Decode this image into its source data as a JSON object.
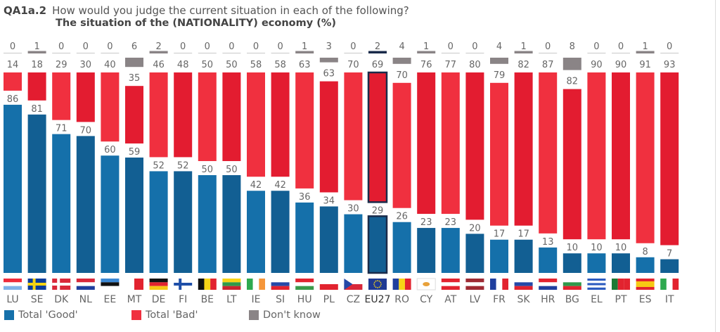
{
  "header": {
    "question_id": "QA1a.2",
    "question": "How would you judge the current situation in each of the following?",
    "subtitle": "The situation of the (NATIONALITY) economy  (%)"
  },
  "colors": {
    "good": "#1570aa",
    "good_alt": "#125f93",
    "bad": "#f0303f",
    "bad_alt": "#e31c30",
    "dont_know": "#8a8486",
    "eu_outline": "#1a2b4a",
    "text": "#666666"
  },
  "legend": [
    {
      "key": "good",
      "label": "Total 'Good'"
    },
    {
      "key": "bad",
      "label": "Total 'Bad'"
    },
    {
      "key": "dont_know",
      "label": "Don't know"
    }
  ],
  "chart_data": {
    "type": "bar",
    "stacked": true,
    "title": "The situation of the (NATIONALITY) economy (%)",
    "xlabel": "",
    "ylabel": "%",
    "ylim": [
      0,
      100
    ],
    "grid": false,
    "legend_position": "bottom",
    "categories": [
      "LU",
      "SE",
      "DK",
      "NL",
      "EE",
      "MT",
      "DE",
      "FI",
      "BE",
      "LT",
      "IE",
      "SI",
      "HU",
      "PL",
      "CZ",
      "EU27",
      "RO",
      "CY",
      "AT",
      "LV",
      "FR",
      "SK",
      "HR",
      "BG",
      "EL",
      "PT",
      "ES",
      "IT"
    ],
    "highlight": "EU27",
    "series": [
      {
        "name": "Total 'Good'",
        "values": [
          86,
          81,
          71,
          70,
          60,
          59,
          52,
          52,
          50,
          50,
          42,
          42,
          36,
          34,
          30,
          29,
          26,
          23,
          23,
          20,
          17,
          17,
          13,
          10,
          10,
          10,
          8,
          7
        ]
      },
      {
        "name": "Total 'Bad'",
        "values": [
          14,
          18,
          29,
          30,
          40,
          35,
          46,
          48,
          50,
          50,
          58,
          58,
          63,
          63,
          70,
          69,
          70,
          76,
          77,
          80,
          79,
          82,
          87,
          82,
          90,
          90,
          91,
          93
        ]
      },
      {
        "name": "Don't know",
        "values": [
          0,
          1,
          0,
          0,
          0,
          6,
          2,
          0,
          0,
          0,
          0,
          0,
          1,
          3,
          0,
          2,
          4,
          1,
          0,
          0,
          4,
          1,
          0,
          8,
          0,
          0,
          1,
          0
        ]
      }
    ]
  },
  "flags": {
    "LU": {
      "stripes": "h",
      "colors": [
        "#ef2b3b",
        "#ffffff",
        "#7fb2e8"
      ]
    },
    "SE": {
      "cross": true,
      "bg": "#0a3d9c",
      "fg": "#f5d312"
    },
    "DK": {
      "cross": true,
      "bg": "#d9283a",
      "fg": "#ffffff"
    },
    "NL": {
      "stripes": "h",
      "colors": [
        "#d9283a",
        "#ffffff",
        "#1f3f9e"
      ]
    },
    "EE": {
      "stripes": "h",
      "colors": [
        "#3b88d4",
        "#111111",
        "#ffffff"
      ]
    },
    "MT": {
      "stripes": "v",
      "colors": [
        "#ffffff",
        "#e2232f"
      ]
    },
    "DE": {
      "stripes": "h",
      "colors": [
        "#111111",
        "#e2232f",
        "#f7c814"
      ]
    },
    "FI": {
      "cross": true,
      "bg": "#ffffff",
      "fg": "#1e4fa8"
    },
    "BE": {
      "stripes": "v",
      "colors": [
        "#111111",
        "#f7d416",
        "#e2232f"
      ]
    },
    "LT": {
      "stripes": "h",
      "colors": [
        "#f7d416",
        "#2e9a4a",
        "#c9232f"
      ]
    },
    "IE": {
      "stripes": "v",
      "colors": [
        "#2ea94f",
        "#ffffff",
        "#f5963a"
      ]
    },
    "SI": {
      "stripes": "h",
      "colors": [
        "#ffffff",
        "#2448a8",
        "#e2232f"
      ]
    },
    "HU": {
      "stripes": "h",
      "colors": [
        "#e2232f",
        "#ffffff",
        "#3b9a4a"
      ]
    },
    "PL": {
      "stripes": "h",
      "colors": [
        "#ffffff",
        "#e2232f"
      ]
    },
    "CZ": {
      "stripes": "h",
      "colors": [
        "#ffffff",
        "#d9283a"
      ],
      "triangle": "#2448a8"
    },
    "EU27": {
      "stripes": "h",
      "colors": [
        "#1f3a93"
      ]
    },
    "RO": {
      "stripes": "v",
      "colors": [
        "#1f3f9e",
        "#f7d416",
        "#e2232f"
      ]
    },
    "CY": {
      "stripes": "h",
      "colors": [
        "#ffffff"
      ],
      "dot": "#e8a13a"
    },
    "AT": {
      "stripes": "h",
      "colors": [
        "#e2232f",
        "#ffffff",
        "#e2232f"
      ]
    },
    "LV": {
      "stripes": "h",
      "colors": [
        "#9e2a33",
        "#ffffff",
        "#9e2a33"
      ]
    },
    "FR": {
      "stripes": "v",
      "colors": [
        "#1f3f9e",
        "#ffffff",
        "#e2232f"
      ]
    },
    "SK": {
      "stripes": "h",
      "colors": [
        "#ffffff",
        "#2448a8",
        "#e2232f"
      ]
    },
    "HR": {
      "stripes": "h",
      "colors": [
        "#e2232f",
        "#ffffff",
        "#1f3f9e"
      ]
    },
    "BG": {
      "stripes": "h",
      "colors": [
        "#ffffff",
        "#2e9a4a",
        "#e2232f"
      ]
    },
    "EL": {
      "stripes": "h",
      "colors": [
        "#2d5cc0",
        "#ffffff",
        "#2d5cc0",
        "#ffffff",
        "#2d5cc0"
      ]
    },
    "PT": {
      "stripes": "v",
      "colors": [
        "#1d7a34",
        "#e2232f",
        "#e2232f"
      ]
    },
    "ES": {
      "stripes": "h",
      "colors": [
        "#e2232f",
        "#f7c814",
        "#f7c814",
        "#e2232f"
      ]
    },
    "IT": {
      "stripes": "v",
      "colors": [
        "#2ea94f",
        "#ffffff",
        "#e2232f"
      ]
    }
  }
}
